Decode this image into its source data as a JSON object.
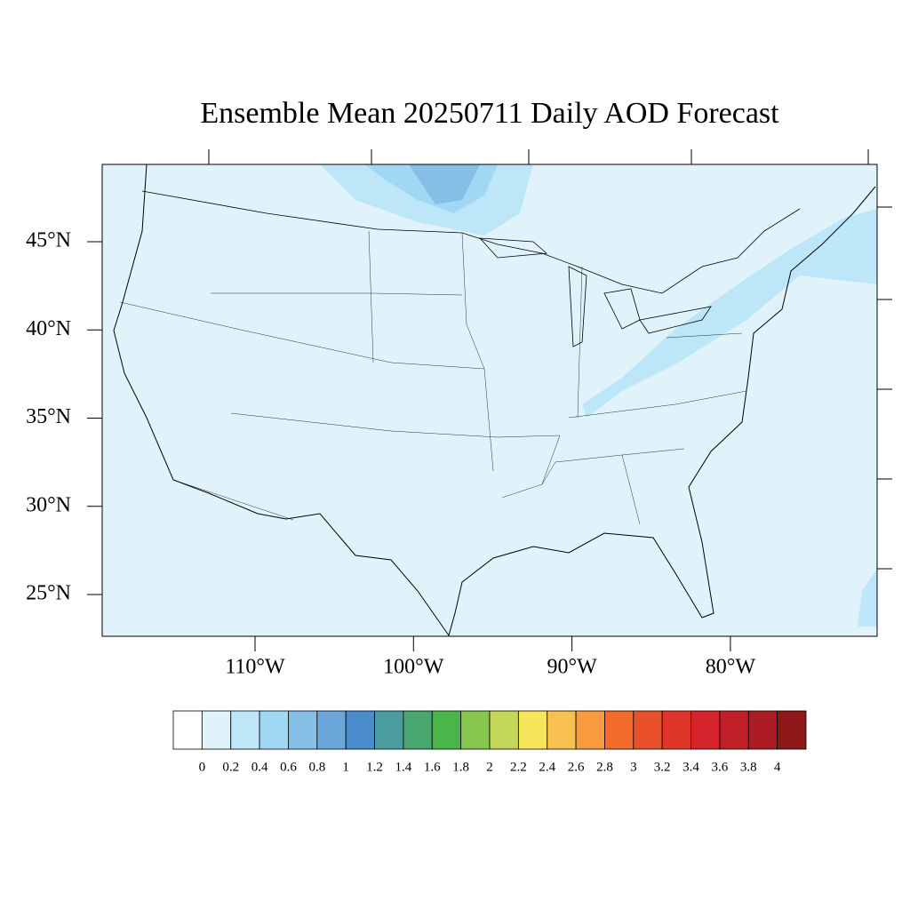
{
  "chart_data": {
    "type": "contour-map",
    "title": "Ensemble Mean 20250711 Daily AOD Forecast",
    "lat_ticks": [
      {
        "value": 45,
        "label": "45°N"
      },
      {
        "value": 40,
        "label": "40°N"
      },
      {
        "value": 35,
        "label": "35°N"
      },
      {
        "value": 30,
        "label": "30°N"
      },
      {
        "value": 25,
        "label": "25°N"
      }
    ],
    "lon_ticks": [
      {
        "value": -110,
        "label": "110°W"
      },
      {
        "value": -100,
        "label": "100°W"
      },
      {
        "value": -90,
        "label": "90°W"
      },
      {
        "value": -80,
        "label": "80°W"
      }
    ],
    "colorbar": {
      "levels": [
        0,
        0.2,
        0.4,
        0.6,
        0.8,
        1,
        1.2,
        1.4,
        1.6,
        1.8,
        2,
        2.2,
        2.4,
        2.6,
        2.8,
        3,
        3.2,
        3.4,
        3.6,
        3.8,
        4
      ],
      "colors": [
        "#ffffff",
        "#e0f3fb",
        "#bde6f8",
        "#a0d8f4",
        "#85bfe6",
        "#6aa6da",
        "#4a8bca",
        "#4b9c9f",
        "#4aa66f",
        "#4ab64a",
        "#86c54e",
        "#c3d65a",
        "#f7e65a",
        "#f8c04e",
        "#f89a3e",
        "#f36c2b",
        "#e84f2b",
        "#e0362a",
        "#d4232a",
        "#c01f27",
        "#ad1c24",
        "#8e1719"
      ]
    }
  }
}
